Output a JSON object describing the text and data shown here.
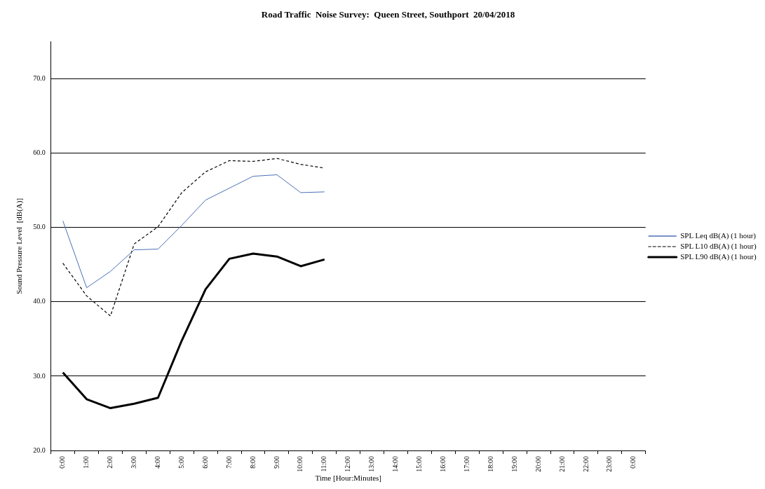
{
  "chart_data": {
    "type": "line",
    "title": "Road Traffic  Noise Survey:  Queen Street, Southport  20/04/2018",
    "xlabel": "Time [Hour:Minutes]",
    "ylabel": "Sound Pressure Level  [dB(A)]",
    "categories": [
      "0:00",
      "1:00",
      "2:00",
      "3:00",
      "4:00",
      "5:00",
      "6:00",
      "7:00",
      "8:00",
      "9:00",
      "10:00",
      "11:00",
      "12:00",
      "13:00",
      "14:00",
      "15:00",
      "16:00",
      "17:00",
      "18:00",
      "19:00",
      "20:00",
      "21:00",
      "22:00",
      "23:00",
      "0:00"
    ],
    "series": [
      {
        "name": "SPL Leq dB(A) (1 hour)",
        "color": "#4a6fb5",
        "line_style": "solid",
        "values": [
          50.9,
          41.9,
          44.1,
          47.0,
          47.1,
          50.3,
          53.7,
          55.3,
          56.9,
          57.1,
          54.7,
          54.8,
          null,
          null,
          null,
          null,
          null,
          null,
          null,
          null,
          null,
          null,
          null,
          null,
          null
        ]
      },
      {
        "name": "SPL L10 dB(A) (1 hour)",
        "color": "#000000",
        "line_style": "dashed",
        "values": [
          45.2,
          40.8,
          38.1,
          47.8,
          50.1,
          54.7,
          57.5,
          59.0,
          58.9,
          59.3,
          58.5,
          58.0,
          null,
          null,
          null,
          null,
          null,
          null,
          null,
          null,
          null,
          null,
          null,
          null,
          null
        ]
      },
      {
        "name": "SPL L90 dB(A) (1 hour)",
        "color": "#000000",
        "line_style": "solid",
        "values": [
          30.5,
          26.9,
          25.7,
          26.3,
          27.1,
          34.8,
          41.7,
          45.8,
          46.5,
          46.1,
          44.8,
          45.7,
          null,
          null,
          null,
          null,
          null,
          null,
          null,
          null,
          null,
          null,
          null,
          null,
          null
        ]
      }
    ],
    "ylim": [
      20,
      75
    ],
    "yticks": [
      {
        "value": 20,
        "label": "20.0"
      },
      {
        "value": 30,
        "label": "30.0"
      },
      {
        "value": 40,
        "label": "40.0"
      },
      {
        "value": 50,
        "label": "50.0"
      },
      {
        "value": 60,
        "label": "60.0"
      },
      {
        "value": 70,
        "label": "70.0"
      }
    ],
    "grid": "y",
    "legend": "right",
    "marker": "none"
  }
}
